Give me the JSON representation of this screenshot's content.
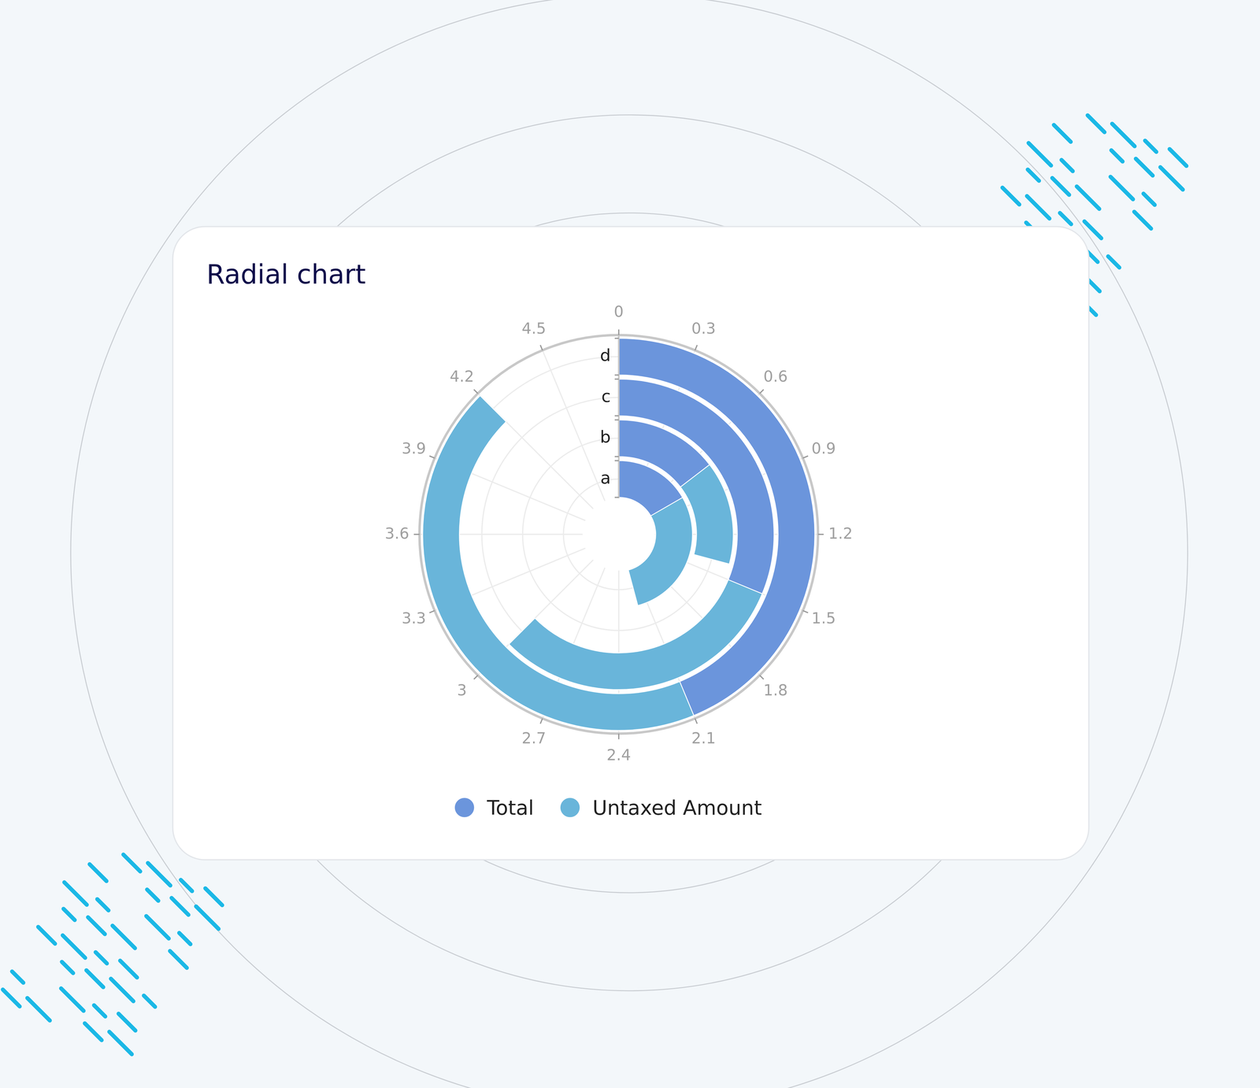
{
  "chart_data": {
    "type": "radial_bar",
    "title": "Radial chart",
    "categories": [
      "a",
      "b",
      "c",
      "d"
    ],
    "series": [
      {
        "name": "Total",
        "color": "#6b95dc",
        "values": [
          0.8,
          0.7,
          1.5,
          2.1
        ]
      },
      {
        "name": "Untaxed Amount",
        "color": "#69b5da",
        "values": [
          1.4,
          0.7,
          1.5,
          2.1
        ]
      }
    ],
    "xlim": [
      0,
      4.8
    ],
    "xticks": [
      0,
      0.3,
      0.6,
      0.9,
      1.2,
      1.5,
      1.8,
      2.1,
      2.4,
      2.7,
      3,
      3.3,
      3.6,
      3.9,
      4.2,
      4.5
    ],
    "stacked": true,
    "grid": true,
    "legend": "bottom"
  }
}
